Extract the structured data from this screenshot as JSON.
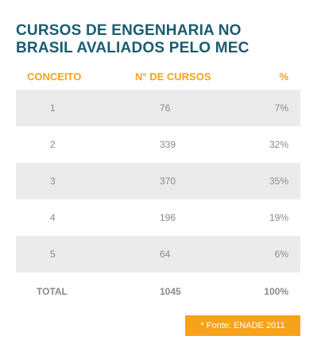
{
  "title": {
    "line1": "CURSOS DE ENGENHARIA NO",
    "line2": "BRASIL AVALIADOS PELO MEC"
  },
  "chart_data": {
    "type": "table",
    "columns": [
      "CONCEITO",
      "N° DE CURSOS",
      "%"
    ],
    "rows": [
      [
        "1",
        "76",
        "7%"
      ],
      [
        "2",
        "339",
        "32%"
      ],
      [
        "3",
        "370",
        "35%"
      ],
      [
        "4",
        "196",
        "19%"
      ],
      [
        "5",
        "64",
        "6%"
      ]
    ],
    "total": [
      "TOTAL",
      "1045",
      "100%"
    ]
  },
  "source": "* Fonte: ENADE 2011",
  "colors": {
    "title": "#1a5c6f",
    "header": "#f7a21b",
    "stripe": "#ebebeb",
    "cell_text": "#8a8a8a",
    "source_bg": "#f7a21b"
  }
}
